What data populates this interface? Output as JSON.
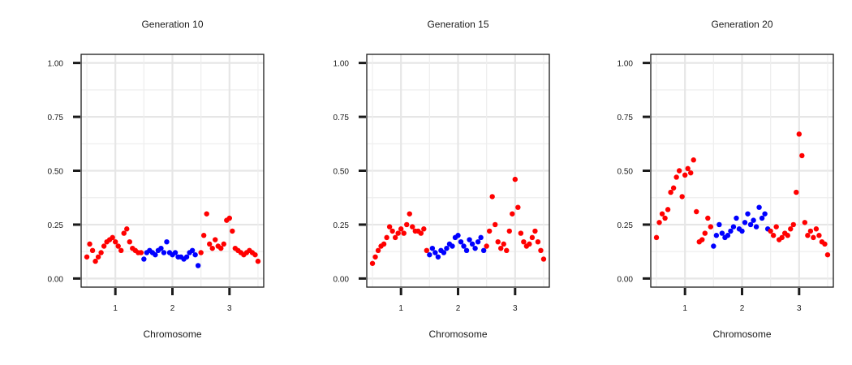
{
  "chart_data": [
    {
      "type": "scatter",
      "title": "Generation 10",
      "xlabel": "Chromosome",
      "ylabel": "",
      "xlim": [
        0.4,
        3.6
      ],
      "ylim": [
        -0.04,
        1.04
      ],
      "x_ticks": [
        1,
        2,
        3
      ],
      "y_ticks": [
        "0.00",
        "0.25",
        "0.50",
        "0.75",
        "1.00"
      ],
      "grid": true,
      "legend": "none",
      "colors": {
        "odd_chromosome": "#ff0000",
        "even_chromosome": "#0000ff"
      },
      "series": [
        {
          "chromosome": 1,
          "color": "#ff0000",
          "x": [
            0.5,
            0.55,
            0.6,
            0.65,
            0.7,
            0.75,
            0.8,
            0.85,
            0.9,
            0.95,
            1.0,
            1.05,
            1.1,
            1.15,
            1.2,
            1.25,
            1.3,
            1.35,
            1.4,
            1.45
          ],
          "y": [
            0.1,
            0.16,
            0.13,
            0.08,
            0.1,
            0.12,
            0.15,
            0.17,
            0.18,
            0.19,
            0.17,
            0.15,
            0.13,
            0.21,
            0.23,
            0.17,
            0.14,
            0.13,
            0.12,
            0.12
          ]
        },
        {
          "chromosome": 2,
          "color": "#0000ff",
          "x": [
            1.5,
            1.55,
            1.6,
            1.65,
            1.7,
            1.75,
            1.8,
            1.85,
            1.9,
            1.95,
            2.0,
            2.05,
            2.1,
            2.15,
            2.2,
            2.25,
            2.3,
            2.35,
            2.4,
            2.45
          ],
          "y": [
            0.09,
            0.12,
            0.13,
            0.12,
            0.11,
            0.13,
            0.14,
            0.12,
            0.17,
            0.12,
            0.11,
            0.12,
            0.1,
            0.1,
            0.09,
            0.1,
            0.12,
            0.13,
            0.11,
            0.06
          ]
        },
        {
          "chromosome": 3,
          "color": "#ff0000",
          "x": [
            2.5,
            2.55,
            2.6,
            2.65,
            2.7,
            2.75,
            2.8,
            2.85,
            2.9,
            2.95,
            3.0,
            3.05,
            3.1,
            3.15,
            3.2,
            3.25,
            3.3,
            3.35,
            3.4,
            3.45,
            3.5
          ],
          "y": [
            0.12,
            0.2,
            0.3,
            0.16,
            0.14,
            0.18,
            0.15,
            0.14,
            0.16,
            0.27,
            0.28,
            0.22,
            0.14,
            0.13,
            0.12,
            0.11,
            0.12,
            0.13,
            0.12,
            0.11,
            0.08
          ]
        }
      ]
    },
    {
      "type": "scatter",
      "title": "Generation 15",
      "xlabel": "Chromosome",
      "ylabel": "",
      "xlim": [
        0.4,
        3.6
      ],
      "ylim": [
        -0.04,
        1.04
      ],
      "x_ticks": [
        1,
        2,
        3
      ],
      "y_ticks": [
        "0.00",
        "0.25",
        "0.50",
        "0.75",
        "1.00"
      ],
      "grid": true,
      "legend": "none",
      "colors": {
        "odd_chromosome": "#ff0000",
        "even_chromosome": "#0000ff"
      },
      "series": [
        {
          "chromosome": 1,
          "color": "#ff0000",
          "x": [
            0.5,
            0.55,
            0.6,
            0.65,
            0.7,
            0.75,
            0.8,
            0.85,
            0.9,
            0.95,
            1.0,
            1.05,
            1.1,
            1.15,
            1.2,
            1.25,
            1.3,
            1.35,
            1.4,
            1.45
          ],
          "y": [
            0.07,
            0.1,
            0.13,
            0.15,
            0.16,
            0.19,
            0.24,
            0.22,
            0.19,
            0.21,
            0.23,
            0.21,
            0.25,
            0.3,
            0.24,
            0.22,
            0.22,
            0.21,
            0.23,
            0.13
          ]
        },
        {
          "chromosome": 2,
          "color": "#0000ff",
          "x": [
            1.5,
            1.55,
            1.6,
            1.65,
            1.7,
            1.75,
            1.8,
            1.85,
            1.9,
            1.95,
            2.0,
            2.05,
            2.1,
            2.15,
            2.2,
            2.25,
            2.3,
            2.35,
            2.4,
            2.45
          ],
          "y": [
            0.11,
            0.14,
            0.12,
            0.1,
            0.13,
            0.12,
            0.14,
            0.16,
            0.15,
            0.19,
            0.2,
            0.17,
            0.15,
            0.13,
            0.18,
            0.16,
            0.14,
            0.17,
            0.19,
            0.13
          ]
        },
        {
          "chromosome": 3,
          "color": "#ff0000",
          "x": [
            2.5,
            2.55,
            2.6,
            2.65,
            2.7,
            2.75,
            2.8,
            2.85,
            2.9,
            2.95,
            3.0,
            3.05,
            3.1,
            3.15,
            3.2,
            3.25,
            3.3,
            3.35,
            3.4,
            3.45,
            3.5
          ],
          "y": [
            0.15,
            0.22,
            0.38,
            0.25,
            0.17,
            0.14,
            0.16,
            0.13,
            0.22,
            0.3,
            0.46,
            0.33,
            0.21,
            0.17,
            0.15,
            0.16,
            0.19,
            0.22,
            0.17,
            0.13,
            0.09
          ]
        }
      ]
    },
    {
      "type": "scatter",
      "title": "Generation 20",
      "xlabel": "Chromosome",
      "ylabel": "",
      "xlim": [
        0.4,
        3.6
      ],
      "ylim": [
        -0.04,
        1.04
      ],
      "x_ticks": [
        1,
        2,
        3
      ],
      "y_ticks": [
        "0.00",
        "0.25",
        "0.50",
        "0.75",
        "1.00"
      ],
      "grid": true,
      "legend": "none",
      "colors": {
        "odd_chromosome": "#ff0000",
        "even_chromosome": "#0000ff"
      },
      "series": [
        {
          "chromosome": 1,
          "color": "#ff0000",
          "x": [
            0.5,
            0.55,
            0.6,
            0.65,
            0.7,
            0.75,
            0.8,
            0.85,
            0.9,
            0.95,
            1.0,
            1.05,
            1.1,
            1.15,
            1.2,
            1.25,
            1.3,
            1.35,
            1.4,
            1.45
          ],
          "y": [
            0.19,
            0.26,
            0.3,
            0.28,
            0.32,
            0.4,
            0.42,
            0.47,
            0.5,
            0.38,
            0.48,
            0.51,
            0.49,
            0.55,
            0.31,
            0.17,
            0.18,
            0.21,
            0.28,
            0.24
          ]
        },
        {
          "chromosome": 2,
          "color": "#0000ff",
          "x": [
            1.5,
            1.55,
            1.6,
            1.65,
            1.7,
            1.75,
            1.8,
            1.85,
            1.9,
            1.95,
            2.0,
            2.05,
            2.1,
            2.15,
            2.2,
            2.25,
            2.3,
            2.35,
            2.4,
            2.45
          ],
          "y": [
            0.15,
            0.2,
            0.25,
            0.21,
            0.19,
            0.2,
            0.22,
            0.24,
            0.28,
            0.23,
            0.22,
            0.26,
            0.3,
            0.25,
            0.27,
            0.24,
            0.33,
            0.28,
            0.3,
            0.23
          ]
        },
        {
          "chromosome": 3,
          "color": "#ff0000",
          "x": [
            2.5,
            2.55,
            2.6,
            2.65,
            2.7,
            2.75,
            2.8,
            2.85,
            2.9,
            2.95,
            3.0,
            3.05,
            3.1,
            3.15,
            3.2,
            3.25,
            3.3,
            3.35,
            3.4,
            3.45,
            3.5
          ],
          "y": [
            0.22,
            0.2,
            0.24,
            0.18,
            0.19,
            0.21,
            0.2,
            0.23,
            0.25,
            0.4,
            0.67,
            0.57,
            0.26,
            0.2,
            0.22,
            0.19,
            0.23,
            0.2,
            0.17,
            0.16,
            0.11
          ]
        }
      ]
    }
  ]
}
